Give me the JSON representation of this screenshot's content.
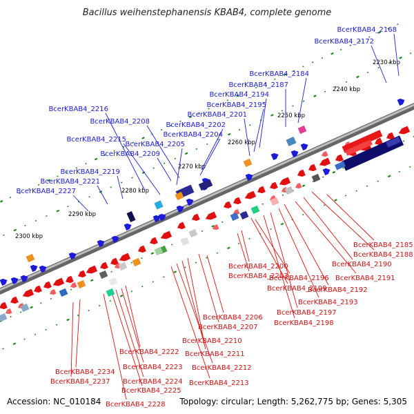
{
  "title": "Bacillus weihenstephanensis KBAB4, complete genome",
  "footer": {
    "accession": "Accession: NC_010184",
    "topology": "Topology: circular; Length: 5,262,775 bp; Genes: 5,305"
  },
  "colors": {
    "forward": "#1c1cd8",
    "reverse": "#e01010",
    "backbone": "#888888",
    "tick": "#1a8a1a",
    "blue_label": "#1a1ad0",
    "red_label": "#cc1111"
  },
  "kbp_labels": [
    "2230 kbp",
    "2240 kbp",
    "2250 kbp",
    "2260 kbp",
    "2270 kbp",
    "2280 kbp",
    "2290 kbp",
    "2300 kbp"
  ],
  "blue_labels": [
    "BcerKBAB4_2168",
    "BcerKBAB4_2172",
    "BcerKBAB4_2184",
    "BcerKBAB4_2187",
    "BcerKBAB4_2194",
    "BcerKBAB4_2195",
    "BcerKBAB4_2201",
    "BcerKBAB4_2202",
    "BcerKBAB4_2204",
    "BcerKBAB4_2205",
    "BcerKBAB4_2208",
    "BcerKBAB4_2209",
    "BcerKBAB4_2215",
    "BcerKBAB4_2216",
    "BcerKBAB4_2219",
    "BcerKBAB4_2221",
    "BcerKBAB4_2227"
  ],
  "red_labels": [
    "BcerKBAB4_2185",
    "BcerKBAB4_2188",
    "BcerKBAB4_2190",
    "BcerKBAB4_2191",
    "BcerKBAB4_2192",
    "BcerKBAB4_2193",
    "BcerKBAB4_2196",
    "BcerKBAB4_2197",
    "BcerKBAB4_2198",
    "BcerKBAB4_2199",
    "BcerKBAB4_2200",
    "BcerKBAB4_2203",
    "BcerKBAB4_2206",
    "BcerKBAB4_2207",
    "BcerKBAB4_2210",
    "BcerKBAB4_2211",
    "BcerKBAB4_2212",
    "BcerKBAB4_2213",
    "BcerKBAB4_2222",
    "BcerKBAB4_2223",
    "BcerKBAB4_2224",
    "BcerKBAB4_2225",
    "BcerKBAB4_2228",
    "BcerKBAB4_2234",
    "BcerKBAB4_2237"
  ]
}
